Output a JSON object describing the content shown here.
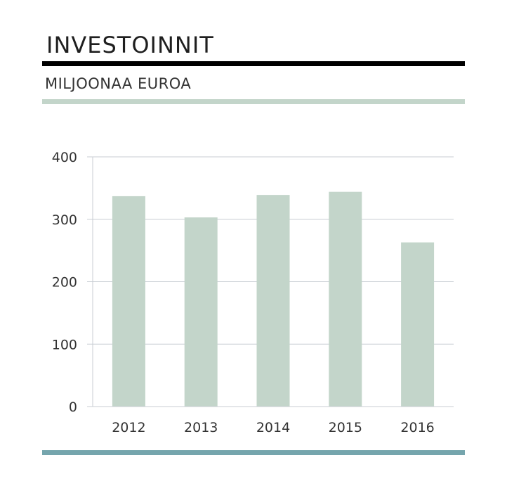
{
  "header": {
    "title": "INVESTOINNIT",
    "subtitle": "MILJOONAA EUROA"
  },
  "colors": {
    "bar": "#c3d5ca",
    "grid": "#c8cdd3",
    "axis_text": "#333333",
    "rule_top": "#000000",
    "rule_mid": "#c3d5ca",
    "rule_bottom": "#75a5ad"
  },
  "chart_data": {
    "type": "bar",
    "title": "INVESTOINNIT",
    "subtitle": "MILJOONAA EUROA",
    "xlabel": "",
    "ylabel": "",
    "categories": [
      "2012",
      "2013",
      "2014",
      "2015",
      "2016"
    ],
    "values": [
      337,
      303,
      339,
      344,
      263
    ],
    "ylim": [
      0,
      400
    ],
    "yticks": [
      0,
      100,
      200,
      300,
      400
    ],
    "grid": true,
    "legend": "none"
  }
}
